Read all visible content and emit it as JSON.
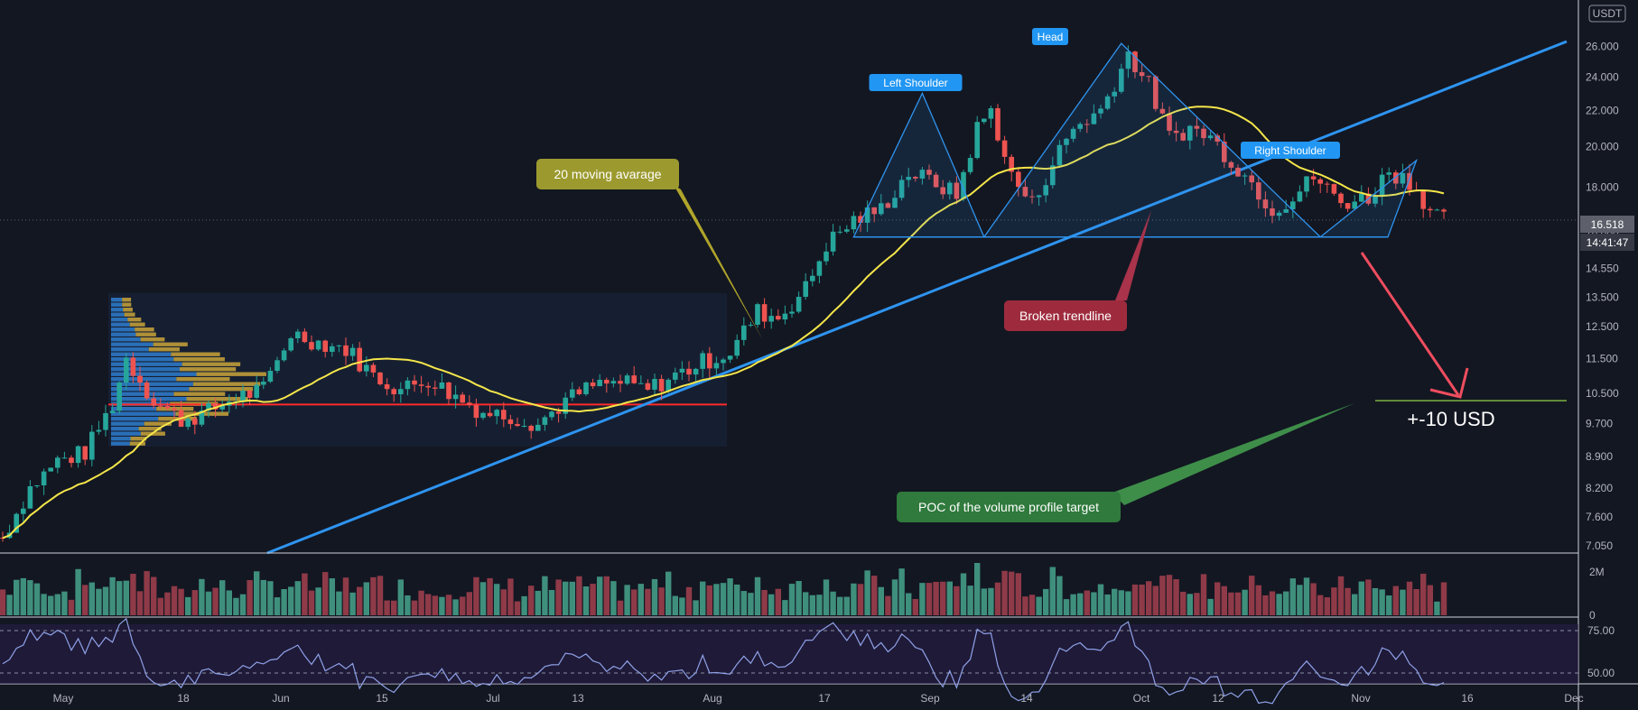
{
  "currency_badge": "USDT",
  "price_label": "16.518",
  "countdown_label": "14:41:47",
  "colors": {
    "background": "#131722",
    "up": "#26a69a",
    "down": "#ef5350",
    "ma": "#f5e64a",
    "trendline": "#2e94f0",
    "poc": "#ff2a2a",
    "pattern": "#2e94f0",
    "target_line": "#7cb342"
  },
  "annotations": {
    "ma_label": "20 moving avarage",
    "broken_label": "Broken trendline",
    "poc_label": "POC of the volume profile target",
    "target_label": "+-10 USD",
    "left_shoulder": "Left Shoulder",
    "head": "Head",
    "right_shoulder": "Right Shoulder"
  },
  "chart_data": {
    "type": "candlestick",
    "scale": "log",
    "y_ticks": [
      "26.000",
      "24.000",
      "22.000",
      "20.000",
      "18.000",
      "16.000",
      "14.550",
      "13.500",
      "12.500",
      "11.500",
      "10.500",
      "9.700",
      "8.900",
      "8.200",
      "7.600",
      "7.050"
    ],
    "x_ticks": [
      "May",
      "18",
      "Jun",
      "15",
      "Jul",
      "13",
      "Aug",
      "17",
      "Sep",
      "14",
      "Oct",
      "12",
      "Nov",
      "16",
      "Dec"
    ],
    "volume_axis": [
      "2M",
      "0"
    ],
    "rsi_axis": [
      "75.00",
      "50.00"
    ],
    "ylim": [
      7.0,
      28.0
    ],
    "last_price": 16.518,
    "poc_level": 10.2,
    "target_level": 10.3,
    "trendline": [
      [
        0,
        6.3
      ],
      [
        245,
        27.1
      ]
    ],
    "pattern_neckline": 15.8,
    "pattern_points": {
      "left_shoulder_peak": 23.0,
      "head_peak": 26.2,
      "right_shoulder_peak": 19.3,
      "left_trough": 15.8,
      "right_trough": 15.8
    },
    "anchors": [
      [
        0,
        7.2
      ],
      [
        4,
        8.2
      ],
      [
        8,
        8.8
      ],
      [
        12,
        9.0
      ],
      [
        16,
        10.2
      ],
      [
        18,
        11.5
      ],
      [
        22,
        10.3
      ],
      [
        26,
        9.8
      ],
      [
        30,
        10.0
      ],
      [
        34,
        10.4
      ],
      [
        38,
        10.6
      ],
      [
        42,
        12.3
      ],
      [
        46,
        12.0
      ],
      [
        50,
        11.8
      ],
      [
        54,
        11.0
      ],
      [
        58,
        10.6
      ],
      [
        62,
        10.9
      ],
      [
        66,
        10.4
      ],
      [
        70,
        10.0
      ],
      [
        74,
        9.9
      ],
      [
        78,
        9.7
      ],
      [
        82,
        10.3
      ],
      [
        86,
        10.7
      ],
      [
        90,
        10.8
      ],
      [
        94,
        10.6
      ],
      [
        98,
        11.0
      ],
      [
        102,
        11.4
      ],
      [
        106,
        11.7
      ],
      [
        110,
        13.0
      ],
      [
        113,
        12.8
      ],
      [
        117,
        13.8
      ],
      [
        120,
        15.5
      ],
      [
        124,
        16.5
      ],
      [
        128,
        17.0
      ],
      [
        132,
        18.7
      ],
      [
        136,
        18.2
      ],
      [
        139,
        17.6
      ],
      [
        142,
        21.0
      ],
      [
        144,
        22.0
      ],
      [
        147,
        18.5
      ],
      [
        150,
        17.2
      ],
      [
        153,
        19.2
      ],
      [
        156,
        21.0
      ],
      [
        160,
        22.0
      ],
      [
        164,
        25.5
      ],
      [
        167,
        23.5
      ],
      [
        170,
        20.5
      ],
      [
        173,
        21.0
      ],
      [
        176,
        20.5
      ],
      [
        179,
        19.3
      ],
      [
        182,
        18.2
      ],
      [
        185,
        17.0
      ],
      [
        188,
        17.5
      ],
      [
        191,
        18.5
      ],
      [
        195,
        17.3
      ],
      [
        199,
        17.5
      ],
      [
        202,
        18.8
      ],
      [
        205,
        18.3
      ],
      [
        208,
        17.0
      ],
      [
        210,
        16.5
      ]
    ],
    "candle_count": 211
  }
}
